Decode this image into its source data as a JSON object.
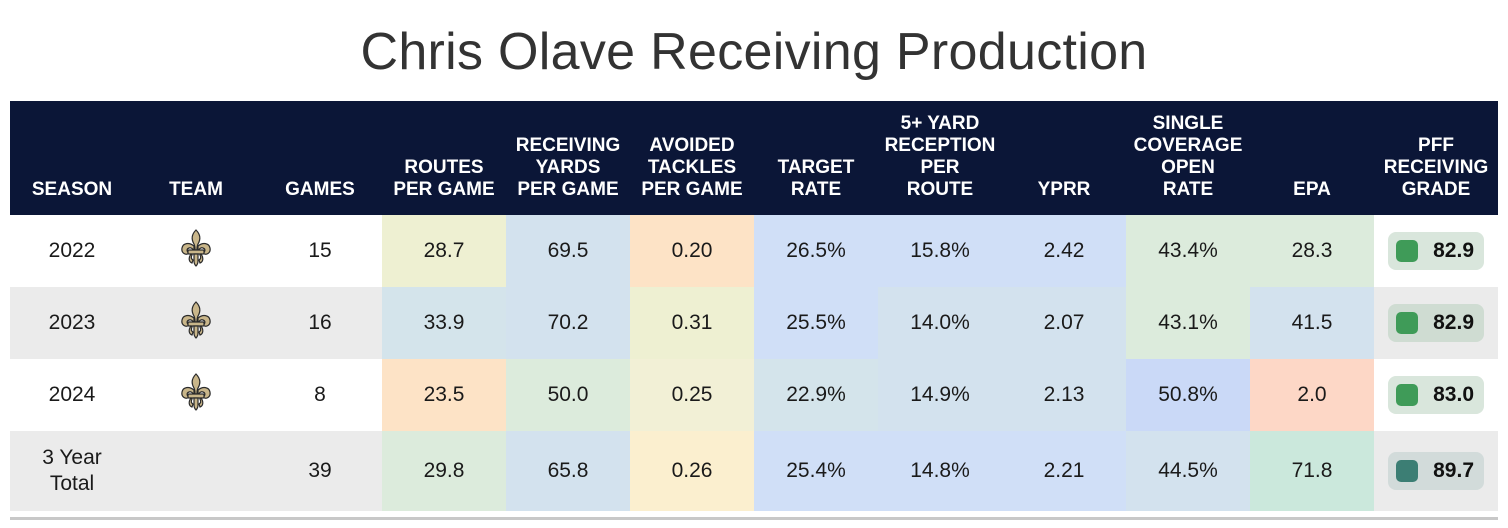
{
  "title": "Chris Olave Receiving Production",
  "headers": [
    "SEASON",
    "TEAM",
    "GAMES",
    "ROUTES\nPER GAME",
    "RECEIVING\nYARDS\nPER GAME",
    "AVOIDED\nTACKLES\nPER GAME",
    "TARGET\nRATE",
    "5+ YARD\nRECEPTION\nPER\nROUTE",
    "YPRR",
    "SINGLE\nCOVERAGE\nOPEN\nRATE",
    "EPA",
    "PFF\nRECEIVING\nGRADE"
  ],
  "team_logo": "fleur-de-lis-icon",
  "rows": [
    {
      "season": "2022",
      "has_logo": true,
      "games": "15",
      "values": [
        "28.7",
        "69.5",
        "0.20",
        "26.5%",
        "15.8%",
        "2.42",
        "43.4%",
        "28.3"
      ],
      "colors": [
        "#eef0d2",
        "#d3e2ee",
        "#fde3c6",
        "#d0dff7",
        "#d0dff7",
        "#d0dff7",
        "#dcebdc",
        "#dcebdc"
      ],
      "grade": "82.9",
      "grade_color": "#3f9b58",
      "grade_bg": "#d9e6dc"
    },
    {
      "season": "2023",
      "has_logo": true,
      "games": "16",
      "values": [
        "33.9",
        "70.2",
        "0.31",
        "25.5%",
        "14.0%",
        "2.07",
        "43.1%",
        "41.5"
      ],
      "colors": [
        "#d4e4eb",
        "#d3e2ee",
        "#eef0d2",
        "#d0dff7",
        "#d3e2ee",
        "#d3e2ee",
        "#dcebdc",
        "#d3e2ee"
      ],
      "grade": "82.9",
      "grade_color": "#3f9b58",
      "grade_bg": "#cfdcd2"
    },
    {
      "season": "2024",
      "has_logo": true,
      "games": "8",
      "values": [
        "23.5",
        "50.0",
        "0.25",
        "22.9%",
        "14.9%",
        "2.13",
        "50.8%",
        "2.0"
      ],
      "colors": [
        "#fde3c6",
        "#dcebdc",
        "#f2f0d6",
        "#d4e4eb",
        "#d3e2ee",
        "#d3e2ee",
        "#cad9f7",
        "#fdd7c6"
      ],
      "grade": "83.0",
      "grade_color": "#3f9b58",
      "grade_bg": "#d9e6dc"
    },
    {
      "season": "3 Year\nTotal",
      "has_logo": false,
      "games": "39",
      "values": [
        "29.8",
        "65.8",
        "0.26",
        "25.4%",
        "14.8%",
        "2.21",
        "44.5%",
        "71.8"
      ],
      "colors": [
        "#dcebdc",
        "#d3e2ee",
        "#fbefcf",
        "#d0dff7",
        "#d0dff7",
        "#d0dff7",
        "#d3e2ee",
        "#cbe8dc"
      ],
      "grade": "89.7",
      "grade_color": "#3c7e74",
      "grade_bg": "#d2dbda"
    }
  ]
}
